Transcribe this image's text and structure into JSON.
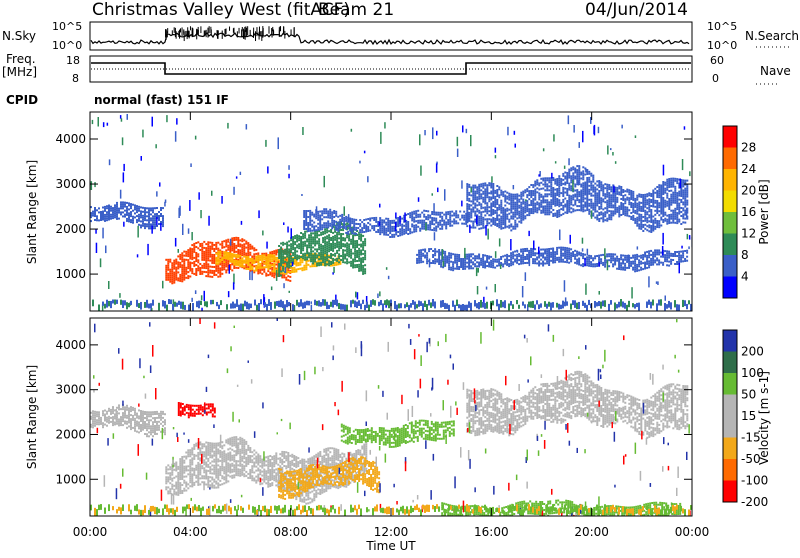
{
  "header": {
    "title": "Christmas Valley West (fitACF)",
    "beam": "Beam 21",
    "date": "04/Jun/2014"
  },
  "left_labels": {
    "nsky": "N.Sky",
    "freq": "Freq.",
    "freq_unit": "[MHz]",
    "cpid": "CPID"
  },
  "right_labels": {
    "nsearch": "N.Search",
    "nave": "Nave"
  },
  "noise_axis": {
    "ticks": [
      "10^5",
      "10^0"
    ]
  },
  "freq_axis": {
    "left_ticks": [
      "18",
      "8"
    ],
    "right_ticks": [
      "60",
      "0"
    ]
  },
  "cpid_text": "normal (fast) 151 IF",
  "power_colorbar": {
    "label": "Power [dB]",
    "ticks": [
      "28",
      "24",
      "20",
      "16",
      "12",
      "8",
      "4"
    ],
    "colors": [
      "#ff0000",
      "#ff6a00",
      "#ffb400",
      "#f2dc00",
      "#6fbe3c",
      "#2e8b57",
      "#3a5fc8",
      "#0000ff"
    ]
  },
  "velocity_colorbar": {
    "label": "Velocity [m s-1]",
    "ticks": [
      "200",
      "100",
      "50",
      "15",
      "-15",
      "-50",
      "-100",
      "-200"
    ],
    "colors": [
      "#2233aa",
      "#2f6e4a",
      "#66bb33",
      "#b5b5b5",
      "#b5b5b5",
      "#f2a81a",
      "#ff6a00",
      "#ff0000"
    ]
  },
  "chart_data": [
    {
      "type": "heatmap",
      "name": "Power",
      "ylabel": "Slant Range [km]",
      "xlim": [
        0,
        24
      ],
      "ylim": [
        180,
        4600
      ],
      "yticks": [
        "4000",
        "3000",
        "2000",
        "1000"
      ],
      "features": [
        {
          "t0": 0.0,
          "t1": 2.9,
          "r0": 2050,
          "r1": 2550,
          "color": "#3a5fc8"
        },
        {
          "t0": 3.0,
          "t1": 8.0,
          "r0": 850,
          "r1": 1700,
          "color": "#ff4000"
        },
        {
          "t0": 5.0,
          "t1": 10.0,
          "r0": 1100,
          "r1": 1500,
          "color": "#ffb400"
        },
        {
          "t0": 7.5,
          "t1": 11.0,
          "r0": 1000,
          "r1": 2000,
          "color": "#2e8b57"
        },
        {
          "t0": 8.5,
          "t1": 15.0,
          "r0": 1900,
          "r1": 2400,
          "color": "#3a5fc8"
        },
        {
          "t0": 15.0,
          "t1": 23.8,
          "r0": 2100,
          "r1": 3200,
          "color": "#3a5fc8"
        },
        {
          "t0": 13.0,
          "t1": 23.8,
          "r0": 1150,
          "r1": 1550,
          "color": "#3a5fc8"
        }
      ]
    },
    {
      "type": "heatmap",
      "name": "Velocity",
      "ylabel": "Slant Range [km]",
      "xlabel": "Time UT",
      "xlim": [
        0,
        24
      ],
      "ylim": [
        180,
        4600
      ],
      "xticks": [
        "00:00",
        "04:00",
        "08:00",
        "12:00",
        "16:00",
        "20:00",
        "00:00"
      ],
      "yticks": [
        "4000",
        "3000",
        "2000",
        "1000"
      ],
      "features": [
        {
          "t0": 0.0,
          "t1": 3.0,
          "r0": 2000,
          "r1": 2600,
          "color": "#b5b5b5"
        },
        {
          "t0": 3.0,
          "t1": 11.0,
          "r0": 700,
          "r1": 1800,
          "color": "#b5b5b5"
        },
        {
          "t0": 7.5,
          "t1": 11.5,
          "r0": 700,
          "r1": 1400,
          "color": "#f2a81a"
        },
        {
          "t0": 3.5,
          "t1": 5.0,
          "r0": 2300,
          "r1": 2700,
          "color": "#ff0000"
        },
        {
          "t0": 10.0,
          "t1": 14.5,
          "r0": 1800,
          "r1": 2300,
          "color": "#66bb33"
        },
        {
          "t0": 15.0,
          "t1": 23.8,
          "r0": 2100,
          "r1": 3200,
          "color": "#b5b5b5"
        },
        {
          "t0": 14.0,
          "t1": 23.5,
          "r0": 150,
          "r1": 500,
          "color": "#66bb33"
        }
      ]
    }
  ]
}
